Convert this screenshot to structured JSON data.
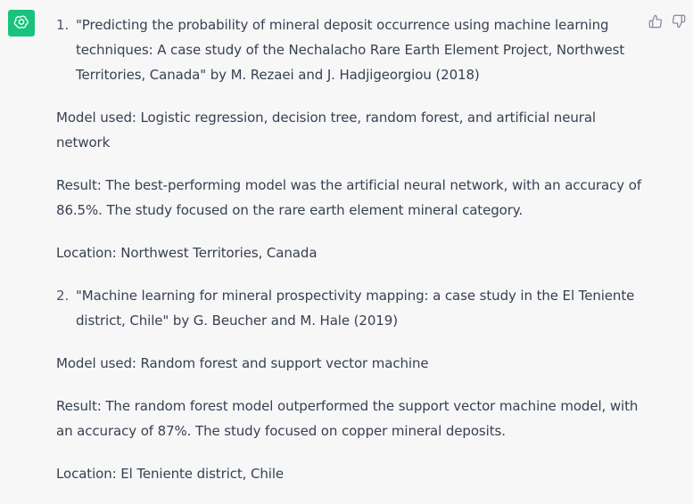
{
  "assistant": {
    "avatar_icon": "openai-logo-icon",
    "avatar_color": "#19c37d"
  },
  "feedback": {
    "thumbs_up_icon": "thumbs-up-icon",
    "thumbs_down_icon": "thumbs-down-icon"
  },
  "message": {
    "items": [
      {
        "number": "1.",
        "citation": "\"Predicting the probability of mineral deposit occurrence using machine learning techniques: A case study of the Nechalacho Rare Earth Element Project, Northwest Territories, Canada\" by M. Rezaei and J. Hadjigeorgiou (2018)",
        "model": "Model used: Logistic regression, decision tree, random forest, and artificial neural network",
        "result": "Result: The best-performing model was the artificial neural network, with an accuracy of 86.5%. The study focused on the rare earth element mineral category.",
        "location": "Location: Northwest Territories, Canada"
      },
      {
        "number": "2.",
        "citation": "\"Machine learning for mineral prospectivity mapping: a case study in the El Teniente district, Chile\" by G. Beucher and M. Hale (2019)",
        "model": "Model used: Random forest and support vector machine",
        "result": "Result: The random forest model outperformed the support vector machine model, with an accuracy of 87%. The study focused on copper mineral deposits.",
        "location": "Location: El Teniente district, Chile"
      }
    ]
  }
}
